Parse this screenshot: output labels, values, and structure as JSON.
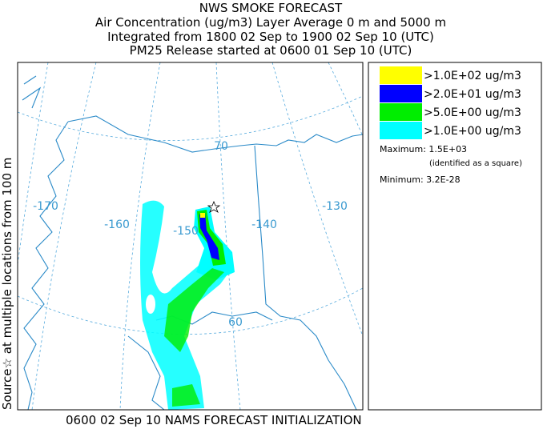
{
  "header": {
    "title": "NWS SMOKE FORECAST",
    "line2": "Air Concentration (ug/m3) Layer Average    0 m and  5000 m",
    "line3": "Integrated from 1800 02 Sep to 1900 02 Sep 10 (UTC)",
    "line4": "PM25 Release started at 0600 01 Sep 10 (UTC)"
  },
  "side_label": "Source☆ at multiple locations from   100 m",
  "map": {
    "labels": [
      "-170",
      "-160",
      "-150",
      "-140",
      "-130",
      "70",
      "60"
    ]
  },
  "legend": {
    "entries": [
      {
        "label": ">1.0E+02 ug/m3",
        "color": "#ffff00"
      },
      {
        "label": ">2.0E+01 ug/m3",
        "color": "#0000ff"
      },
      {
        "label": ">5.0E+00 ug/m3",
        "color": "#00ee00"
      },
      {
        "label": ">1.0E+00 ug/m3",
        "color": "#00ffff"
      }
    ],
    "maximum": "Maximum: 1.5E+03",
    "identified": "(identified as a square)",
    "minimum": "Minimum: 3.2E-28"
  },
  "footer": "0600 02 Sep 10 NAMS FORECAST INITIALIZATION"
}
